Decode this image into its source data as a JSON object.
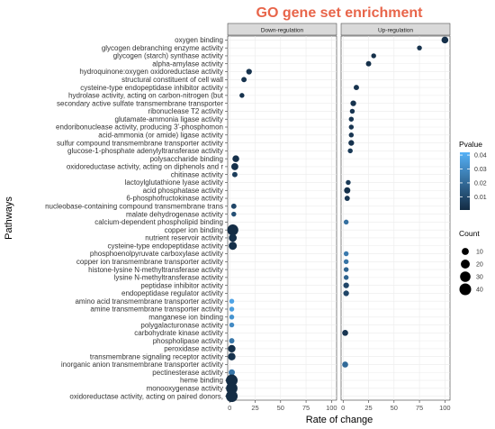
{
  "chart_data": {
    "type": "scatter",
    "title": "GO gene set enrichment",
    "xlabel": "Rate of change",
    "ylabel": "Pathways",
    "xlim": [
      -2,
      105
    ],
    "x_ticks": [
      0,
      25,
      50,
      75,
      100
    ],
    "x_tick_labels": [
      "0",
      "25",
      "50",
      "75",
      "100"
    ],
    "panels": [
      "Down-regulation",
      "Up-regulation"
    ],
    "pathways": [
      "oxygen binding",
      "glycogen debranching enzyme activity",
      "glycogen (starch) synthase activity",
      "alpha-amylase activity",
      "hydroquinone:oxygen oxidoreductase activity",
      "structural constituent of cell wall",
      "cysteine-type endopeptidase inhibitor activity",
      "hydrolase activity, acting on carbon-nitrogen (but",
      "secondary active sulfate transmembrane transporter",
      "ribonuclease T2 activity",
      "glutamate-ammonia ligase activity",
      "endoribonuclease activity, producing 3'-phosphomon",
      "acid-ammonia (or amide) ligase activity",
      "sulfur compound transmembrane transporter activity",
      "glucose-1-phosphate adenylyltransferase activity",
      "polysaccharide binding",
      "oxidoreductase activity, acting on diphenols and r",
      "chitinase activity",
      "lactoylglutathione lyase activity",
      "acid phosphatase activity",
      "6-phosphofructokinase activity",
      "nucleobase-containing compound transmembrane trans",
      "malate dehydrogenase activity",
      "calcium-dependent phospholipid binding",
      "copper ion binding",
      "nutrient reservoir activity",
      "cysteine-type endopeptidase activity",
      "phosphoenolpyruvate carboxylase activity",
      "copper ion transmembrane transporter activity",
      "histone-lysine N-methyltransferase activity",
      "lysine N-methyltransferase activity",
      "peptidase inhibitor activity",
      "endopeptidase regulator activity",
      "amino acid transmembrane transporter activity",
      "amine transmembrane transporter activity",
      "manganese ion binding",
      "polygalacturonase activity",
      "carbohydrate kinase activity",
      "phospholipase activity",
      "peroxidase activity",
      "transmembrane signaling receptor activity",
      "inorganic anion transmembrane transporter activity",
      "pectinesterase activity",
      "heme binding",
      "monooxygenase activity",
      "oxidoreductase activity, acting on paired donors,"
    ],
    "points": [
      {
        "panel": "Up-regulation",
        "pathway": "oxygen binding",
        "x": 100,
        "count": 9,
        "pvalue": 0.002
      },
      {
        "panel": "Up-regulation",
        "pathway": "glycogen debranching enzyme activity",
        "x": 75,
        "count": 3,
        "pvalue": 0.003
      },
      {
        "panel": "Up-regulation",
        "pathway": "glycogen (starch) synthase activity",
        "x": 30,
        "count": 3,
        "pvalue": 0.002
      },
      {
        "panel": "Up-regulation",
        "pathway": "alpha-amylase activity",
        "x": 25,
        "count": 4,
        "pvalue": 0.002
      },
      {
        "panel": "Down-regulation",
        "pathway": "hydroquinone:oxygen oxidoreductase activity",
        "x": 19,
        "count": 5,
        "pvalue": 0.003
      },
      {
        "panel": "Down-regulation",
        "pathway": "structural constituent of cell wall",
        "x": 14,
        "count": 4,
        "pvalue": 0.003
      },
      {
        "panel": "Up-regulation",
        "pathway": "cysteine-type endopeptidase inhibitor activity",
        "x": 13,
        "count": 4,
        "pvalue": 0.003
      },
      {
        "panel": "Down-regulation",
        "pathway": "hydrolase activity, acting on carbon-nitrogen (but",
        "x": 12,
        "count": 3,
        "pvalue": 0.003
      },
      {
        "panel": "Up-regulation",
        "pathway": "secondary active sulfate transmembrane transporter",
        "x": 10,
        "count": 5,
        "pvalue": 0.003
      },
      {
        "panel": "Up-regulation",
        "pathway": "ribonuclease T2 activity",
        "x": 9,
        "count": 3,
        "pvalue": 0.004
      },
      {
        "panel": "Up-regulation",
        "pathway": "glutamate-ammonia ligase activity",
        "x": 8,
        "count": 3,
        "pvalue": 0.004
      },
      {
        "panel": "Up-regulation",
        "pathway": "endoribonuclease activity, producing 3'-phosphomon",
        "x": 8,
        "count": 3,
        "pvalue": 0.004
      },
      {
        "panel": "Up-regulation",
        "pathway": "acid-ammonia (or amide) ligase activity",
        "x": 8,
        "count": 3,
        "pvalue": 0.004
      },
      {
        "panel": "Up-regulation",
        "pathway": "sulfur compound transmembrane transporter activity",
        "x": 8,
        "count": 5,
        "pvalue": 0.003
      },
      {
        "panel": "Up-regulation",
        "pathway": "glucose-1-phosphate adenylyltransferase activity",
        "x": 7,
        "count": 3,
        "pvalue": 0.005
      },
      {
        "panel": "Down-regulation",
        "pathway": "polysaccharide binding",
        "x": 6,
        "count": 9,
        "pvalue": 0.002
      },
      {
        "panel": "Down-regulation",
        "pathway": "oxidoreductase activity, acting on diphenols and r",
        "x": 5,
        "count": 10,
        "pvalue": 0.002
      },
      {
        "panel": "Down-regulation",
        "pathway": "chitinase activity",
        "x": 5,
        "count": 4,
        "pvalue": 0.006
      },
      {
        "panel": "Up-regulation",
        "pathway": "lactoylglutathione lyase activity",
        "x": 5,
        "count": 3,
        "pvalue": 0.005
      },
      {
        "panel": "Up-regulation",
        "pathway": "acid phosphatase activity",
        "x": 4,
        "count": 7,
        "pvalue": 0.002
      },
      {
        "panel": "Up-regulation",
        "pathway": "6-phosphofructokinase activity",
        "x": 4,
        "count": 4,
        "pvalue": 0.004
      },
      {
        "panel": "Down-regulation",
        "pathway": "nucleobase-containing compound transmembrane trans",
        "x": 4,
        "count": 4,
        "pvalue": 0.009
      },
      {
        "panel": "Down-regulation",
        "pathway": "malate dehydrogenase activity",
        "x": 4,
        "count": 3,
        "pvalue": 0.012
      },
      {
        "panel": "Up-regulation",
        "pathway": "calcium-dependent phospholipid binding",
        "x": 3,
        "count": 3,
        "pvalue": 0.022
      },
      {
        "panel": "Down-regulation",
        "pathway": "copper ion binding",
        "x": 3,
        "count": 35,
        "pvalue": 0.001
      },
      {
        "panel": "Down-regulation",
        "pathway": "nutrient reservoir activity",
        "x": 3,
        "count": 14,
        "pvalue": 0.002
      },
      {
        "panel": "Down-regulation",
        "pathway": "cysteine-type endopeptidase activity",
        "x": 3,
        "count": 15,
        "pvalue": 0.002
      },
      {
        "panel": "Up-regulation",
        "pathway": "phosphoenolpyruvate carboxylase activity",
        "x": 3,
        "count": 3,
        "pvalue": 0.025
      },
      {
        "panel": "Up-regulation",
        "pathway": "copper ion transmembrane transporter activity",
        "x": 3,
        "count": 3,
        "pvalue": 0.023
      },
      {
        "panel": "Up-regulation",
        "pathway": "histone-lysine N-methyltransferase activity",
        "x": 3,
        "count": 3,
        "pvalue": 0.018
      },
      {
        "panel": "Up-regulation",
        "pathway": "lysine N-methyltransferase activity",
        "x": 3,
        "count": 3,
        "pvalue": 0.018
      },
      {
        "panel": "Up-regulation",
        "pathway": "peptidase inhibitor activity",
        "x": 3,
        "count": 5,
        "pvalue": 0.009
      },
      {
        "panel": "Up-regulation",
        "pathway": "endopeptidase regulator activity",
        "x": 3,
        "count": 5,
        "pvalue": 0.009
      },
      {
        "panel": "Down-regulation",
        "pathway": "amino acid transmembrane transporter activity",
        "x": 2,
        "count": 3,
        "pvalue": 0.038
      },
      {
        "panel": "Down-regulation",
        "pathway": "amine transmembrane transporter activity",
        "x": 2,
        "count": 3,
        "pvalue": 0.036
      },
      {
        "panel": "Down-regulation",
        "pathway": "manganese ion binding",
        "x": 2,
        "count": 3,
        "pvalue": 0.033
      },
      {
        "panel": "Down-regulation",
        "pathway": "polygalacturonase activity",
        "x": 2,
        "count": 3,
        "pvalue": 0.03
      },
      {
        "panel": "Up-regulation",
        "pathway": "carbohydrate kinase activity",
        "x": 2,
        "count": 6,
        "pvalue": 0.004
      },
      {
        "panel": "Down-regulation",
        "pathway": "phospholipase activity",
        "x": 2,
        "count": 4,
        "pvalue": 0.024
      },
      {
        "panel": "Down-regulation",
        "pathway": "peroxidase activity",
        "x": 2,
        "count": 12,
        "pvalue": 0.002
      },
      {
        "panel": "Down-regulation",
        "pathway": "transmembrane signaling receptor activity",
        "x": 2,
        "count": 12,
        "pvalue": 0.003
      },
      {
        "panel": "Up-regulation",
        "pathway": "inorganic anion transmembrane transporter activity",
        "x": 2,
        "count": 6,
        "pvalue": 0.02
      },
      {
        "panel": "Down-regulation",
        "pathway": "pectinesterase activity",
        "x": 2,
        "count": 7,
        "pvalue": 0.024
      },
      {
        "panel": "Down-regulation",
        "pathway": "heme binding",
        "x": 2,
        "count": 40,
        "pvalue": 0.001
      },
      {
        "panel": "Down-regulation",
        "pathway": "monooxygenase activity",
        "x": 2,
        "count": 38,
        "pvalue": 0.001
      },
      {
        "panel": "Down-regulation",
        "pathway": "oxidoreductase activity, acting on paired donors,",
        "x": 2,
        "count": 40,
        "pvalue": 0.001
      }
    ],
    "legend": {
      "color_title": "Pvalue",
      "color_breaks": [
        0.01,
        0.02,
        0.03,
        0.04
      ],
      "color_range": [
        0.0005,
        0.042
      ],
      "color_low": "#132B43",
      "color_high": "#56B1F7",
      "size_title": "Count",
      "size_breaks": [
        10,
        20,
        30,
        40
      ],
      "placement": "right"
    },
    "grid": true,
    "title_color": "#E8654A"
  }
}
